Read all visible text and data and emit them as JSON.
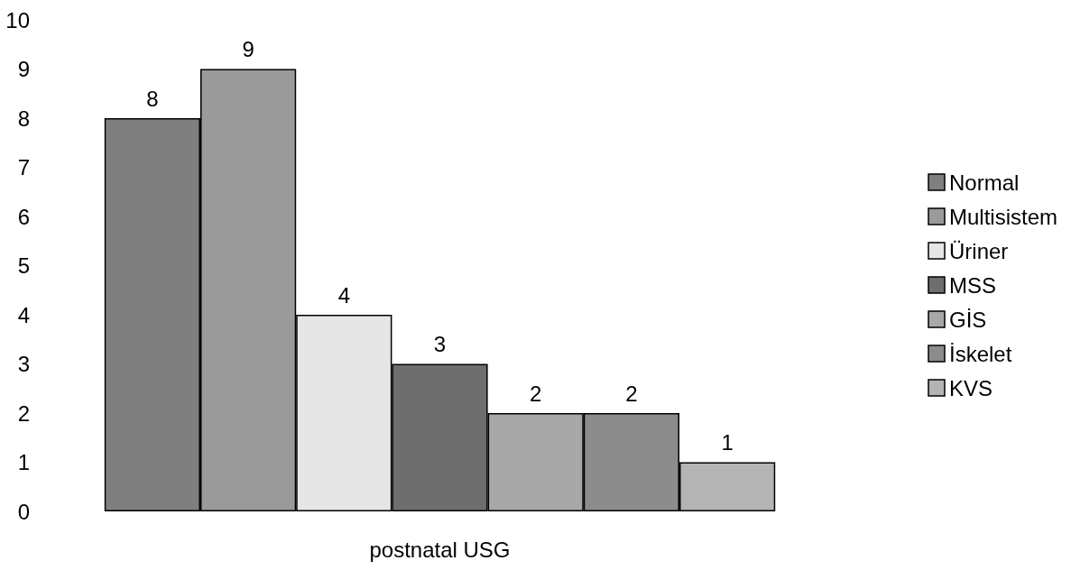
{
  "chart_data": {
    "type": "bar",
    "categories": [
      null
    ],
    "xlabel": "postnatal USG",
    "series": [
      {
        "name": "Normal",
        "color": "#7f7f7f",
        "values": [
          8
        ]
      },
      {
        "name": "Multisistem",
        "color": "#9a9a9a",
        "values": [
          9
        ]
      },
      {
        "name": "Üriner",
        "color": "#e6e6e6",
        "values": [
          4
        ]
      },
      {
        "name": "MSS",
        "color": "#6e6e6e",
        "values": [
          3
        ]
      },
      {
        "name": "GİS",
        "color": "#a8a8a8",
        "values": [
          2
        ]
      },
      {
        "name": "İskelet",
        "color": "#8c8c8c",
        "values": [
          2
        ]
      },
      {
        "name": "KVS",
        "color": "#b4b4b4",
        "values": [
          1
        ]
      }
    ],
    "ylim": [
      0,
      10
    ],
    "yticks": [
      0,
      1,
      2,
      3,
      4,
      5,
      6,
      7,
      8,
      9,
      10
    ],
    "grid": false,
    "legend": "right",
    "data_labels": true
  }
}
